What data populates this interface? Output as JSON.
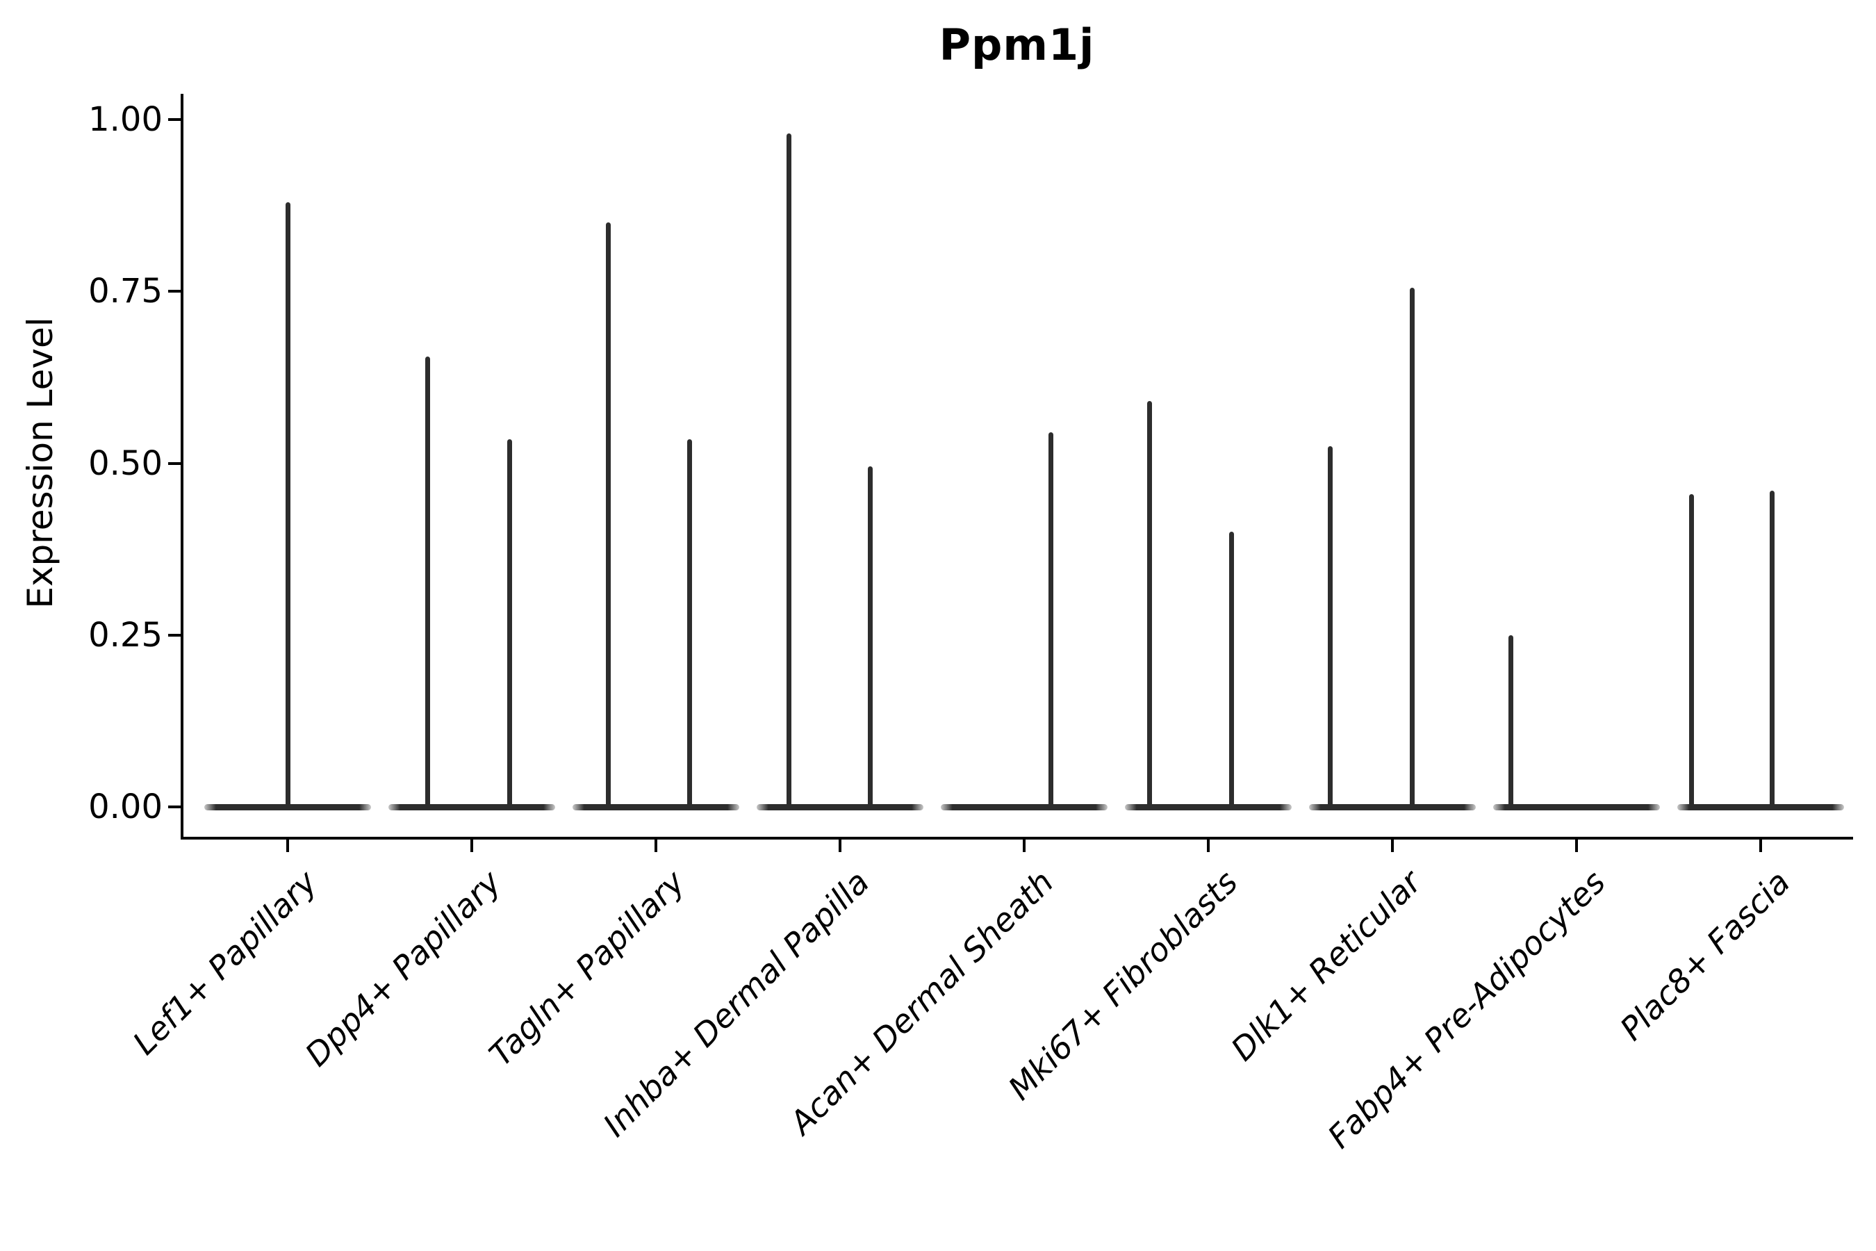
{
  "title": "Ppm1j",
  "y_axis": {
    "label": "Expression Level",
    "ticks": [
      {
        "label": "1.00",
        "value": 1.0
      },
      {
        "label": "0.75",
        "value": 0.75
      },
      {
        "label": "0.50",
        "value": 0.5
      },
      {
        "label": "0.25",
        "value": 0.25
      },
      {
        "label": "0.00",
        "value": 0.0
      }
    ]
  },
  "colors": {
    "ink": "#2d2d2d",
    "spine": "#000000",
    "background": "#ffffff"
  },
  "chart_data": {
    "type": "violin",
    "title": "Ppm1j",
    "xlabel": "",
    "ylabel": "Expression Level",
    "ylim": [
      0,
      1.0
    ],
    "grid": false,
    "legend": "none",
    "description": "Each category shows a violin collapsed to a flat line at expression 0 (most cells zero) with thin spikes rising to the expression levels of rare expressing cells.",
    "baseline_value": 0.0,
    "categories": [
      "Lef1+ Papillary",
      "Dpp4+ Papillary",
      "Tagln+ Papillary",
      "Inhba+ Dermal Papilla",
      "Acan+ Dermal Sheath",
      "Mki67+ Fibroblasts",
      "Dlk1+ Reticular",
      "Fabp4+ Pre-Adipocytes",
      "Plac8+ Fascia"
    ],
    "series": [
      {
        "name": "Lef1+ Papillary",
        "spikes": [
          {
            "dx": 0,
            "value": 0.88
          }
        ]
      },
      {
        "name": "Dpp4+ Papillary",
        "spikes": [
          {
            "dx": -64,
            "value": 0.655
          },
          {
            "dx": 54,
            "value": 0.535
          }
        ]
      },
      {
        "name": "Tagln+ Papillary",
        "spikes": [
          {
            "dx": -69,
            "value": 0.85
          },
          {
            "dx": 48,
            "value": 0.535
          }
        ]
      },
      {
        "name": "Inhba+ Dermal Papilla",
        "spikes": [
          {
            "dx": -74,
            "value": 0.98
          },
          {
            "dx": 43,
            "value": 0.495
          }
        ]
      },
      {
        "name": "Acan+ Dermal Sheath",
        "spikes": [
          {
            "dx": 38,
            "value": 0.545
          }
        ]
      },
      {
        "name": "Mki67+ Fibroblasts",
        "spikes": [
          {
            "dx": -85,
            "value": 0.59
          },
          {
            "dx": 33,
            "value": 0.4
          }
        ]
      },
      {
        "name": "Dlk1+ Reticular",
        "spikes": [
          {
            "dx": -90,
            "value": 0.525
          },
          {
            "dx": 28,
            "value": 0.755
          }
        ]
      },
      {
        "name": "Fabp4+ Pre-Adipocytes",
        "spikes": [
          {
            "dx": -95,
            "value": 0.25
          }
        ]
      },
      {
        "name": "Plac8+ Fascia",
        "spikes": [
          {
            "dx": -100,
            "value": 0.455
          },
          {
            "dx": 16,
            "value": 0.46
          }
        ]
      }
    ]
  }
}
